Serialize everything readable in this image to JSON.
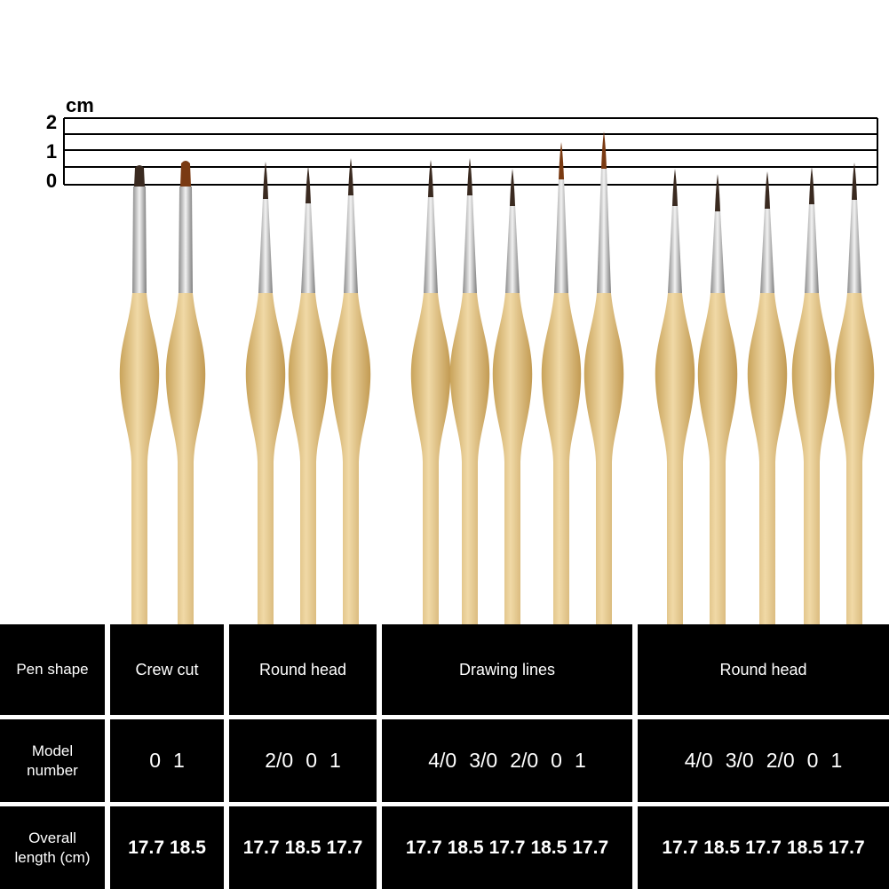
{
  "ruler": {
    "unit": "cm",
    "labels": [
      "2",
      "1",
      "0"
    ]
  },
  "table": {
    "rows": [
      {
        "header": "Pen shape",
        "groups": [
          "Crew cut",
          "Round head",
          "Drawing lines",
          "Round head"
        ]
      },
      {
        "header": "Model number",
        "groups": [
          [
            "0",
            "1"
          ],
          [
            "2/0",
            "0",
            "1"
          ],
          [
            "4/0",
            "3/0",
            "2/0",
            "0",
            "1"
          ],
          [
            "4/0",
            "3/0",
            "2/0",
            "0",
            "1"
          ]
        ]
      },
      {
        "header": "Overall length (cm)",
        "groups": [
          [
            "17.7",
            "18.5"
          ],
          [
            "17.7",
            "18.5",
            "17.7"
          ],
          [
            "17.7",
            "18.5",
            "17.7",
            "18.5",
            "17.7"
          ],
          [
            "17.7",
            "18.5",
            "17.7",
            "18.5",
            "17.7"
          ]
        ]
      }
    ]
  }
}
